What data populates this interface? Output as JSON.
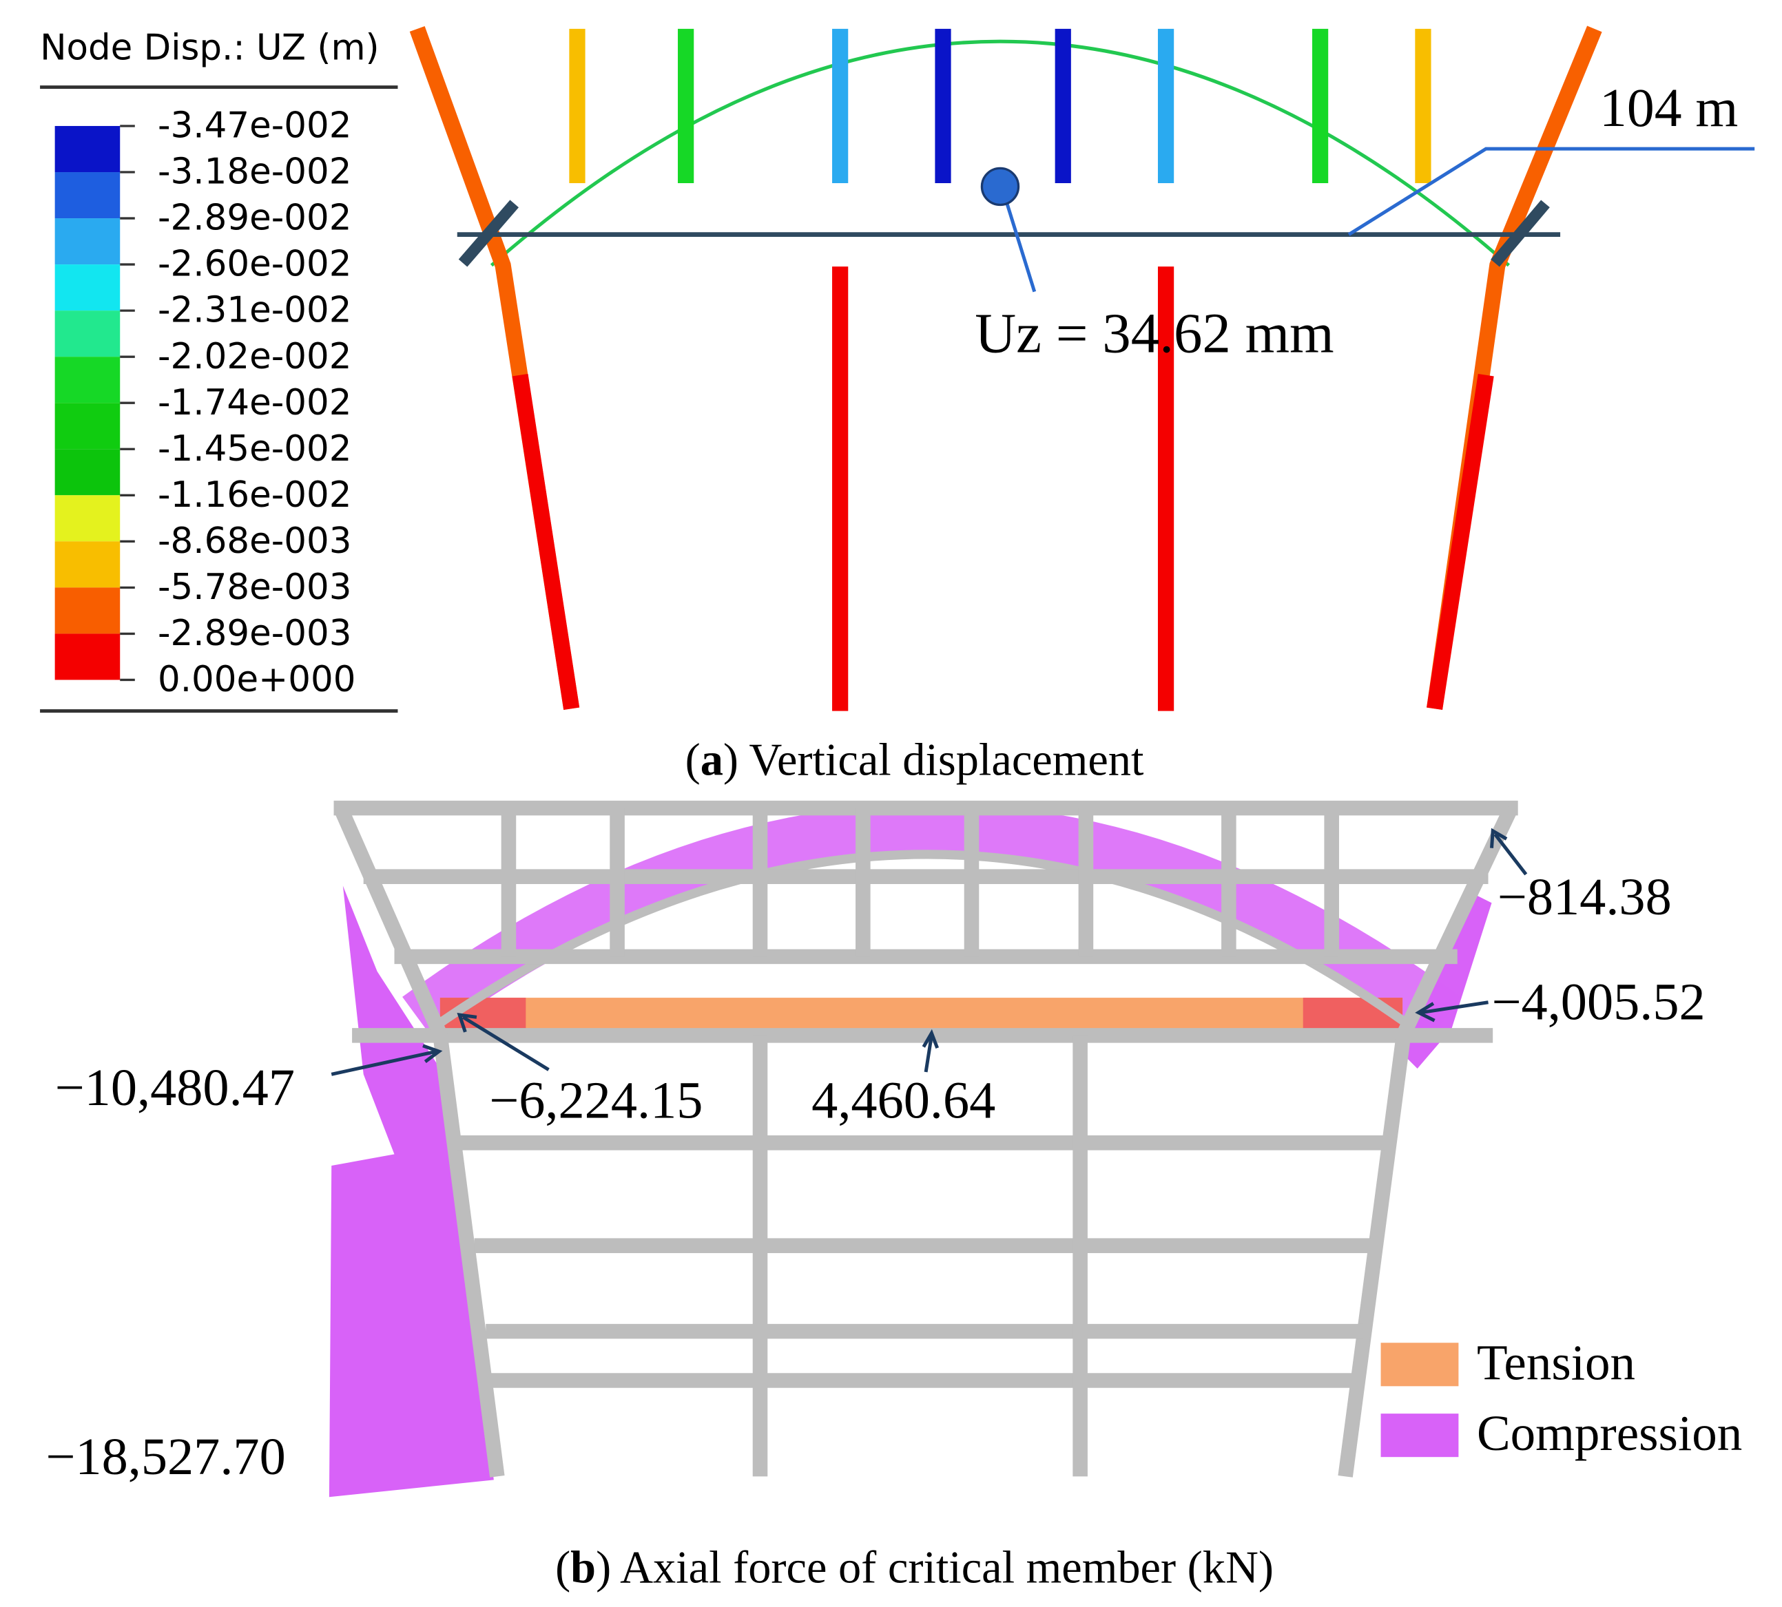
{
  "panel_a": {
    "legend_title": "Node Disp.: UZ (m)",
    "legend_labels": [
      "-3.47e-002",
      "-3.18e-002",
      "-2.89e-002",
      "-2.60e-002",
      "-2.31e-002",
      "-2.02e-002",
      "-1.74e-002",
      "-1.45e-002",
      "-1.16e-002",
      "-8.68e-003",
      "-5.78e-003",
      "-2.89e-003",
      "0.00e+000"
    ],
    "legend_colors": [
      "#0a14c8",
      "#1e5ee0",
      "#2aaaf0",
      "#12e6f0",
      "#22e88e",
      "#16d826",
      "#10cc10",
      "#0cc40c",
      "#e4f21e",
      "#f8be00",
      "#f85e00",
      "#f40000"
    ],
    "span_label": "104 m",
    "uz_label": "Uz = 34.62 mm",
    "caption": [
      "(",
      "a",
      ") Vertical displacement"
    ]
  },
  "panel_b": {
    "labels": [
      "−814.38",
      "−4,005.52",
      "−10,480.47",
      "−6,224.15",
      "4,460.64",
      "−18,527.70"
    ],
    "legend": [
      {
        "name": "Tension",
        "color": "#f8a46a"
      },
      {
        "name": "Compression",
        "color": "#d862f8"
      }
    ],
    "caption": [
      "(",
      "b",
      ") Axial force of critical member (kN)"
    ]
  }
}
